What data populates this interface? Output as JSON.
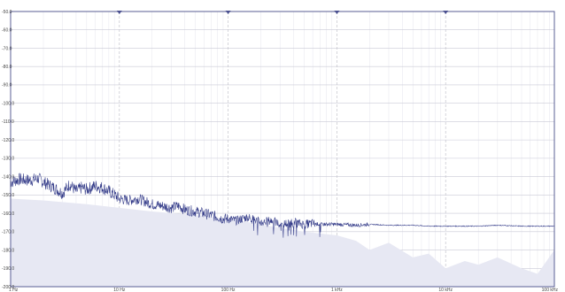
{
  "chart_data": {
    "type": "line",
    "title": "",
    "xlabel": "",
    "ylabel": "",
    "x_scale": "log",
    "xlim_hz": [
      1,
      100000
    ],
    "ylim": [
      -200,
      -50
    ],
    "yticks": [
      {
        "value": -50,
        "label": "-50.0"
      },
      {
        "value": -60,
        "label": "-60.0"
      },
      {
        "value": -70,
        "label": "-70.0"
      },
      {
        "value": -80,
        "label": "-80.0"
      },
      {
        "value": -90,
        "label": "-90.0"
      },
      {
        "value": -100,
        "label": "-100.0"
      },
      {
        "value": -110,
        "label": "-110.0"
      },
      {
        "value": -120,
        "label": "-120.0"
      },
      {
        "value": -130,
        "label": "-130.0"
      },
      {
        "value": -140,
        "label": "-140.0"
      },
      {
        "value": -150,
        "label": "-150.0"
      },
      {
        "value": -160,
        "label": "-160.0"
      },
      {
        "value": -170,
        "label": "-170.0"
      },
      {
        "value": -180,
        "label": "-180.0"
      },
      {
        "value": -190,
        "label": "-190.0"
      },
      {
        "value": -200,
        "label": "-200.0"
      }
    ],
    "xticks": [
      {
        "value": 1,
        "label": "1 Hz"
      },
      {
        "value": 10,
        "label": "10 Hz"
      },
      {
        "value": 100,
        "label": "100 Hz"
      },
      {
        "value": 1000,
        "label": "1 kHz"
      },
      {
        "value": 10000,
        "label": "10 kHz"
      },
      {
        "value": 100000,
        "label": "100 kHz"
      }
    ],
    "markers_hz": [
      10,
      100,
      1000,
      10000
    ],
    "grid": true,
    "colors": {
      "line": "#2d3585",
      "fill": "#e7e8f3",
      "frame": "#4a4f8a",
      "marker": "#4a5090"
    },
    "series": [
      {
        "x": [
          1,
          1.2,
          1.5,
          1.8,
          2,
          2.5,
          3,
          3.5,
          4,
          4.5,
          5,
          6,
          7,
          8,
          9,
          10,
          12,
          15,
          18,
          20,
          25,
          30,
          35,
          40,
          50,
          60,
          70,
          80,
          90,
          100,
          120,
          150,
          200,
          250,
          300,
          400,
          500,
          600,
          700,
          800,
          1000,
          1500,
          2000,
          3000,
          5000,
          7000,
          10000,
          20000,
          30000,
          50000,
          70000,
          100000
        ],
        "values": [
          -143,
          -141.5,
          -142,
          -141,
          -143,
          -146,
          -149,
          -144,
          -148,
          -146,
          -147,
          -145,
          -146,
          -148,
          -150,
          -152,
          -153,
          -152,
          -154,
          -155,
          -156,
          -157,
          -156,
          -158,
          -159,
          -160,
          -161,
          -162,
          -163,
          -163,
          -164,
          -162,
          -165,
          -164,
          -166,
          -165,
          -166,
          -165.5,
          -166,
          -166,
          -166,
          -166.5,
          -166,
          -166.5,
          -166.5,
          -167,
          -167,
          -167,
          -166.5,
          -167,
          -167,
          -167
        ]
      },
      {
        "x": [
          1,
          2,
          5,
          10,
          20,
          50,
          100,
          200,
          300,
          500,
          700,
          1000,
          1500,
          2000,
          3000,
          5000,
          7000,
          10000,
          15000,
          20000,
          30000,
          50000,
          70000,
          100000
        ],
        "values": [
          -152,
          -153,
          -155,
          -157,
          -159,
          -161,
          -163,
          -166,
          -168,
          -170,
          -171,
          -172,
          -175,
          -180,
          -176,
          -184,
          -182,
          -190,
          -186,
          -188,
          -184,
          -190,
          -193,
          -180
        ]
      }
    ]
  }
}
